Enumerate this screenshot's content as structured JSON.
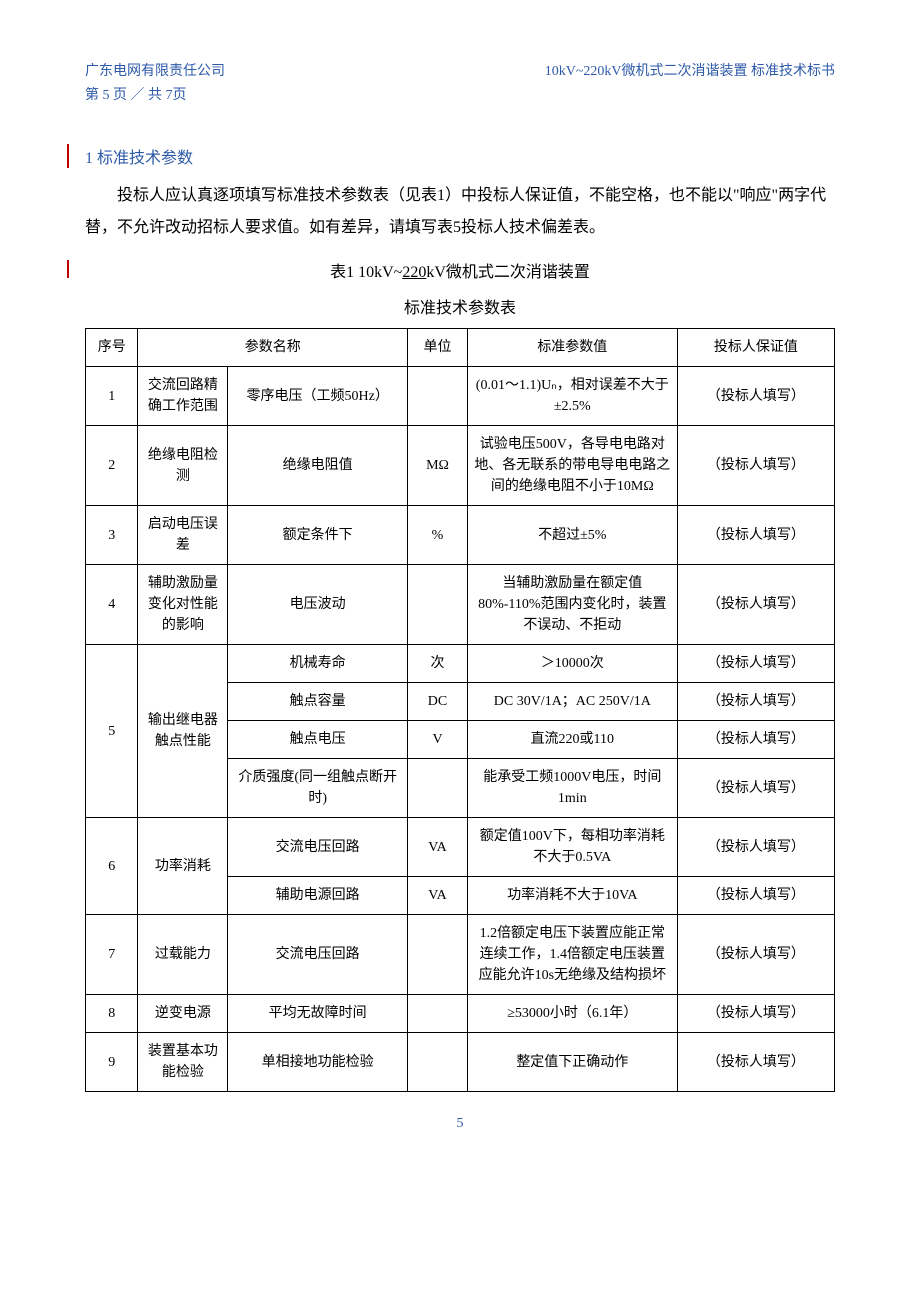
{
  "header": {
    "left_line1": "广东电网有限责任公司",
    "left_line2": "第 5 页 ／ 共 7页",
    "right": "10kV~220kV微机式二次消谐装置 标准技术标书"
  },
  "section": {
    "heading": "1 标准技术参数",
    "intro": "投标人应认真逐项填写标准技术参数表（见表1）中投标人保证值，不能空格，也不能以\"响应\"两字代替，不允许改动招标人要求值。如有差异，请填写表5投标人技术偏差表。"
  },
  "table": {
    "title_prefix": "表1   10kV~",
    "title_mid_underlined": "220",
    "title_suffix": "kV微机式二次消谐装置",
    "subtitle": "标准技术参数表",
    "columns": {
      "seq": "序号",
      "param_name": "参数名称",
      "unit": "单位",
      "std_value": "标准参数值",
      "bidder_value": "投标人保证值"
    },
    "bidder_fill": "（投标人填写）",
    "rows": [
      {
        "seq": "1",
        "category": "交流回路精确工作范围",
        "name": "零序电压（工频50Hz）",
        "unit": "",
        "std": "(0.01～1.1)Uₙ，相对误差不大于±2.5%"
      },
      {
        "seq": "2",
        "category": "绝缘电阻检测",
        "name": "绝缘电阻值",
        "unit": "MΩ",
        "std": "试验电压500V，各导电电路对地、各无联系的带电导电电路之间的绝缘电阻不小于10MΩ"
      },
      {
        "seq": "3",
        "category": "启动电压误差",
        "name": "额定条件下",
        "unit": "%",
        "std": "不超过±5%"
      },
      {
        "seq": "4",
        "category": "辅助激励量变化对性能的影响",
        "name": "电压波动",
        "unit": "",
        "std": "当辅助激励量在额定值80%-110%范围内变化时，装置不误动、不拒动"
      },
      {
        "seq": "5",
        "category": "输出继电器触点性能",
        "subrows": [
          {
            "name": "机械寿命",
            "unit": "次",
            "std": "＞10000次"
          },
          {
            "name": "触点容量",
            "unit": "DC",
            "std": "DC 30V/1A；AC 250V/1A"
          },
          {
            "name": "触点电压",
            "unit": "V",
            "std": "直流220或110"
          },
          {
            "name": "介质强度(同一组触点断开时)",
            "unit": "",
            "std": "能承受工频1000V电压，时间1min"
          }
        ]
      },
      {
        "seq": "6",
        "category": "功率消耗",
        "subrows": [
          {
            "name": "交流电压回路",
            "unit": "VA",
            "std": "额定值100V下，每相功率消耗不大于0.5VA"
          },
          {
            "name": "辅助电源回路",
            "unit": "VA",
            "std": "功率消耗不大于10VA"
          }
        ]
      },
      {
        "seq": "7",
        "category": "过载能力",
        "name": "交流电压回路",
        "unit": "",
        "std": "1.2倍额定电压下装置应能正常连续工作，1.4倍额定电压装置应能允许10s无绝缘及结构损坏"
      },
      {
        "seq": "8",
        "category": "逆变电源",
        "name": "平均无故障时间",
        "unit": "",
        "std": "≥53000小时（6.1年）"
      },
      {
        "seq": "9",
        "category": "装置基本功能检验",
        "name": "单相接地功能检验",
        "unit": "",
        "std": "整定值下正确动作"
      }
    ]
  },
  "footer": {
    "page": "5"
  },
  "colors": {
    "accent": "#2e5aa8",
    "text": "#000000",
    "border": "#000000",
    "revision": "#c00000",
    "background": "#ffffff"
  }
}
